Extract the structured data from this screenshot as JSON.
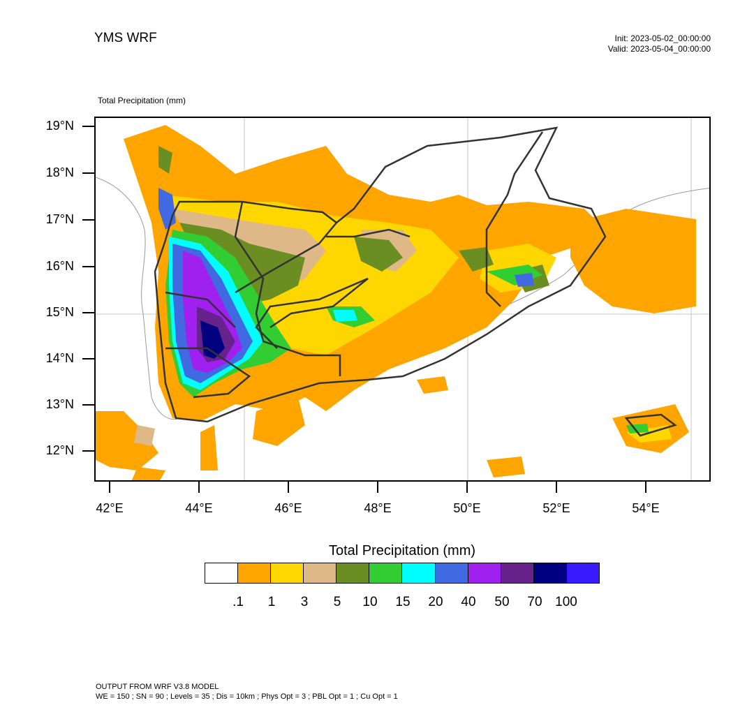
{
  "header": {
    "title": "YMS WRF",
    "init": "Init: 2023-05-02_00:00:00",
    "valid": "Valid: 2023-05-04_00:00:00"
  },
  "map": {
    "label": "Total Precipitation   (mm)",
    "lat_labels": [
      "19°N",
      "18°N",
      "17°N",
      "16°N",
      "15°N",
      "14°N",
      "13°N",
      "12°N"
    ],
    "lon_labels": [
      "42°E",
      "44°E",
      "46°E",
      "48°E",
      "50°E",
      "52°E",
      "54°E"
    ]
  },
  "colorbar": {
    "title": "Total Precipitation  (mm)",
    "colors": [
      "#ffffff",
      "#ffa500",
      "#ffd700",
      "#deb887",
      "#6b8e23",
      "#32cd32",
      "#00ffff",
      "#4169e1",
      "#a020f0",
      "#68228b",
      "#000080",
      "#3a1aff"
    ],
    "ticks": [
      ".1",
      "1",
      "3",
      "5",
      "10",
      "15",
      "20",
      "40",
      "50",
      "70",
      "100"
    ]
  },
  "footer": {
    "line1": "OUTPUT FROM WRF V3.8 MODEL",
    "line2": "WE = 150 ; SN = 90 ; Levels = 35 ; Dis = 10km ; Phys Opt = 3 ; PBL Opt = 1 ; Cu Opt = 1"
  }
}
